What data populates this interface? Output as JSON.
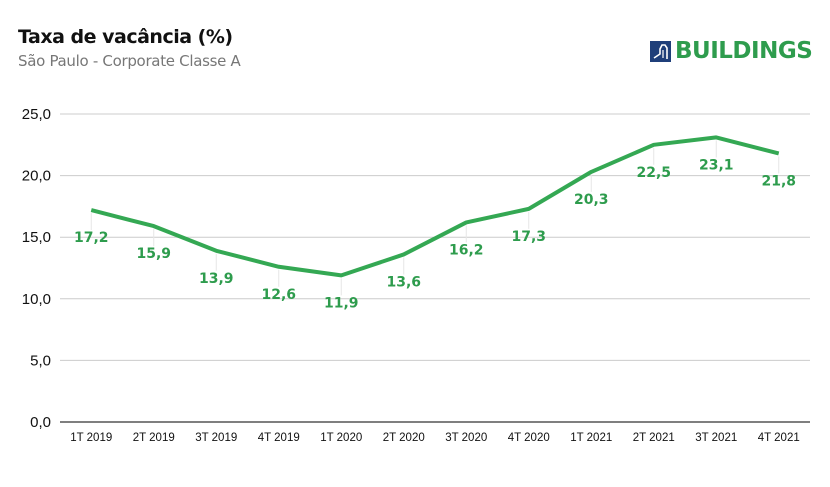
{
  "header": {
    "title": "Taxa de vacância (%)",
    "subtitle": "São Paulo - Corporate Classe A"
  },
  "logo": {
    "text": "BUILDINGS",
    "icon": "building-icon",
    "icon_color": "#1f3f7a",
    "text_color": "#2e9c4d"
  },
  "chart_data": {
    "type": "line",
    "title": "Taxa de vacância (%)",
    "subtitle": "São Paulo - Corporate Classe A",
    "xlabel": "",
    "ylabel": "",
    "categories": [
      "1T 2019",
      "2T 2019",
      "3T 2019",
      "4T 2019",
      "1T 2020",
      "2T 2020",
      "3T 2020",
      "4T 2020",
      "1T 2021",
      "2T 2021",
      "3T 2021",
      "4T 2021"
    ],
    "series": [
      {
        "name": "Taxa de vacância",
        "color": "#34a853",
        "values": [
          17.2,
          15.9,
          13.9,
          12.6,
          11.9,
          13.6,
          16.2,
          17.3,
          20.3,
          22.5,
          23.1,
          21.8
        ],
        "labels": [
          "17,2",
          "15,9",
          "13,9",
          "12,6",
          "11,9",
          "13,6",
          "16,2",
          "17,3",
          "20,3",
          "22,5",
          "23,1",
          "21,8"
        ]
      }
    ],
    "ylim": [
      0,
      25
    ],
    "yticks": [
      0,
      5,
      10,
      15,
      20,
      25
    ],
    "ytick_labels": [
      "0,0",
      "5,0",
      "10,0",
      "15,0",
      "20,0",
      "25,0"
    ],
    "grid": true,
    "legend": "none"
  }
}
